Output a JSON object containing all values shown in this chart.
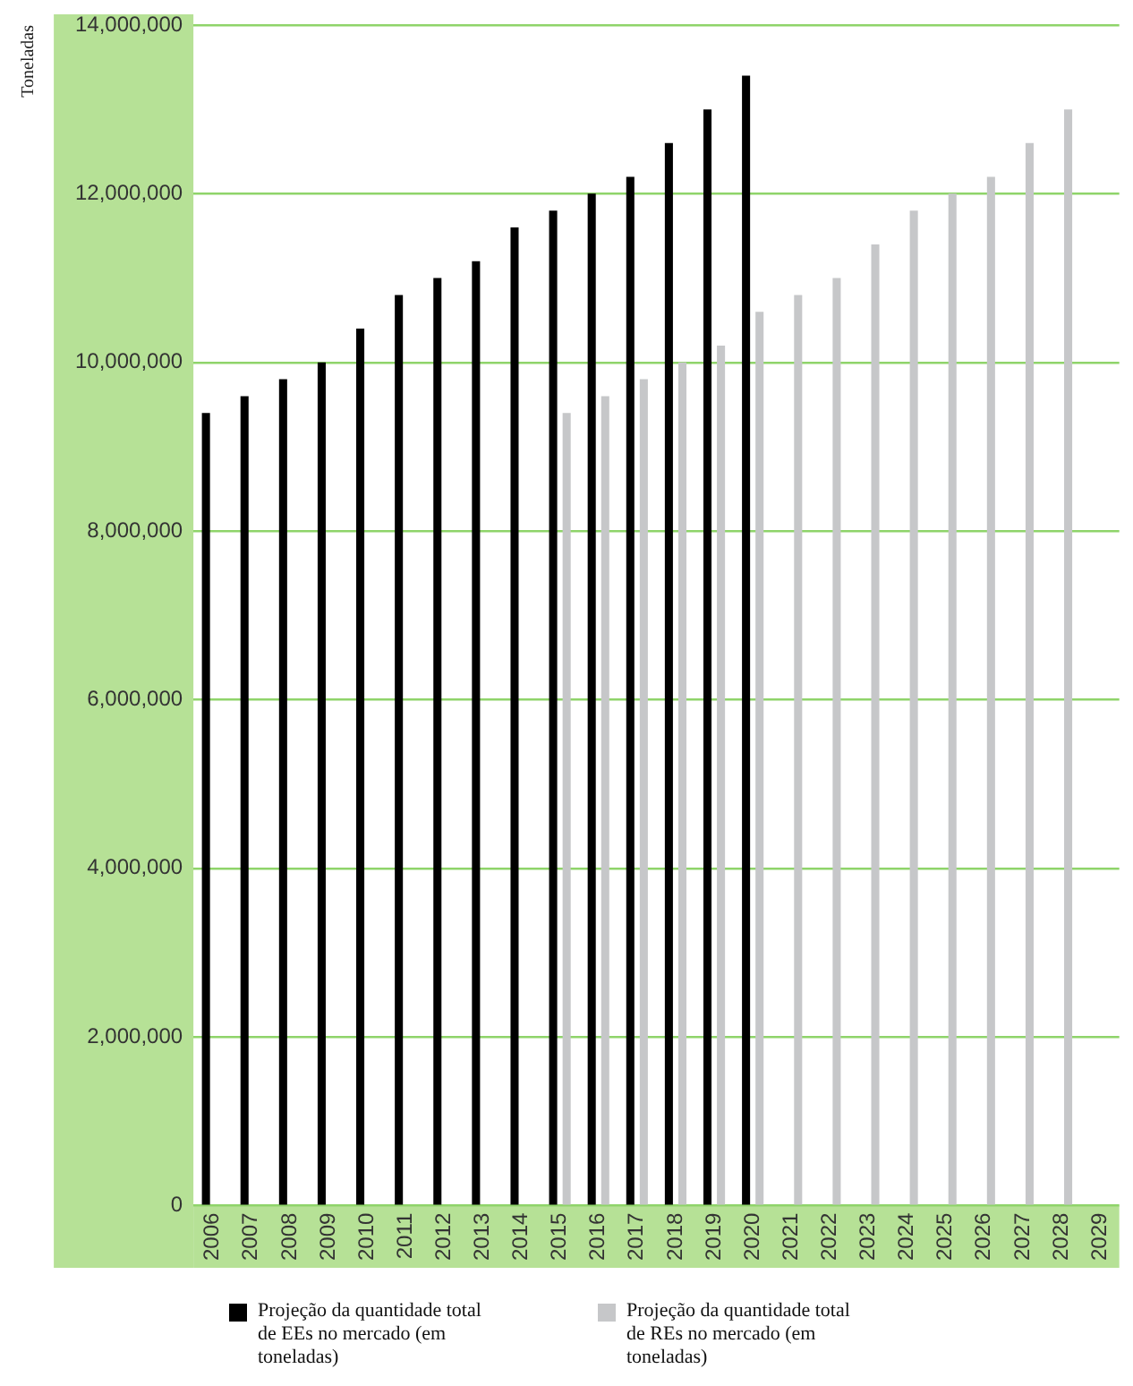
{
  "chart_data": {
    "type": "bar",
    "ylabel": "Toneladas",
    "categories": [
      "2006",
      "2007",
      "2008",
      "2009",
      "2010",
      "2011",
      "2012",
      "2013",
      "2014",
      "2015",
      "2016",
      "2017",
      "2018",
      "2019",
      "2020",
      "2021",
      "2022",
      "2023",
      "2024",
      "2025",
      "2026",
      "2027",
      "2028",
      "2029"
    ],
    "series": [
      {
        "name": "Projeção da quantidade total de EEs no mercado (em toneladas)",
        "color": "#000000",
        "values": [
          9400000,
          9600000,
          9800000,
          10000000,
          10400000,
          10800000,
          11000000,
          11200000,
          11600000,
          11800000,
          12000000,
          12200000,
          12600000,
          13000000,
          13400000,
          null,
          null,
          null,
          null,
          null,
          null,
          null,
          null,
          null
        ]
      },
      {
        "name": "Projeção da quantidade total de REs no mercado (em toneladas)",
        "color": "#c6c7c9",
        "values": [
          null,
          null,
          null,
          null,
          null,
          null,
          null,
          null,
          null,
          9400000,
          9600000,
          9800000,
          10000000,
          10200000,
          10600000,
          10800000,
          11000000,
          11400000,
          11800000,
          12000000,
          12200000,
          12600000,
          13000000,
          null
        ]
      }
    ],
    "ylim": [
      0,
      14000000
    ],
    "yticks": [
      0,
      {
        "value": 2000000,
        "label": "2,000,000"
      },
      {
        "value": 4000000,
        "label": "4,000,000"
      },
      {
        "value": 6000000,
        "label": "6,000,000"
      },
      {
        "value": 8000000,
        "label": "8,000,000"
      },
      {
        "value": 10000000,
        "label": "10,000,000"
      },
      {
        "value": 12000000,
        "label": "12,000,000"
      },
      {
        "value": 14000000,
        "label": "14,000,000"
      }
    ],
    "grid": "y",
    "legend": "bottom"
  }
}
